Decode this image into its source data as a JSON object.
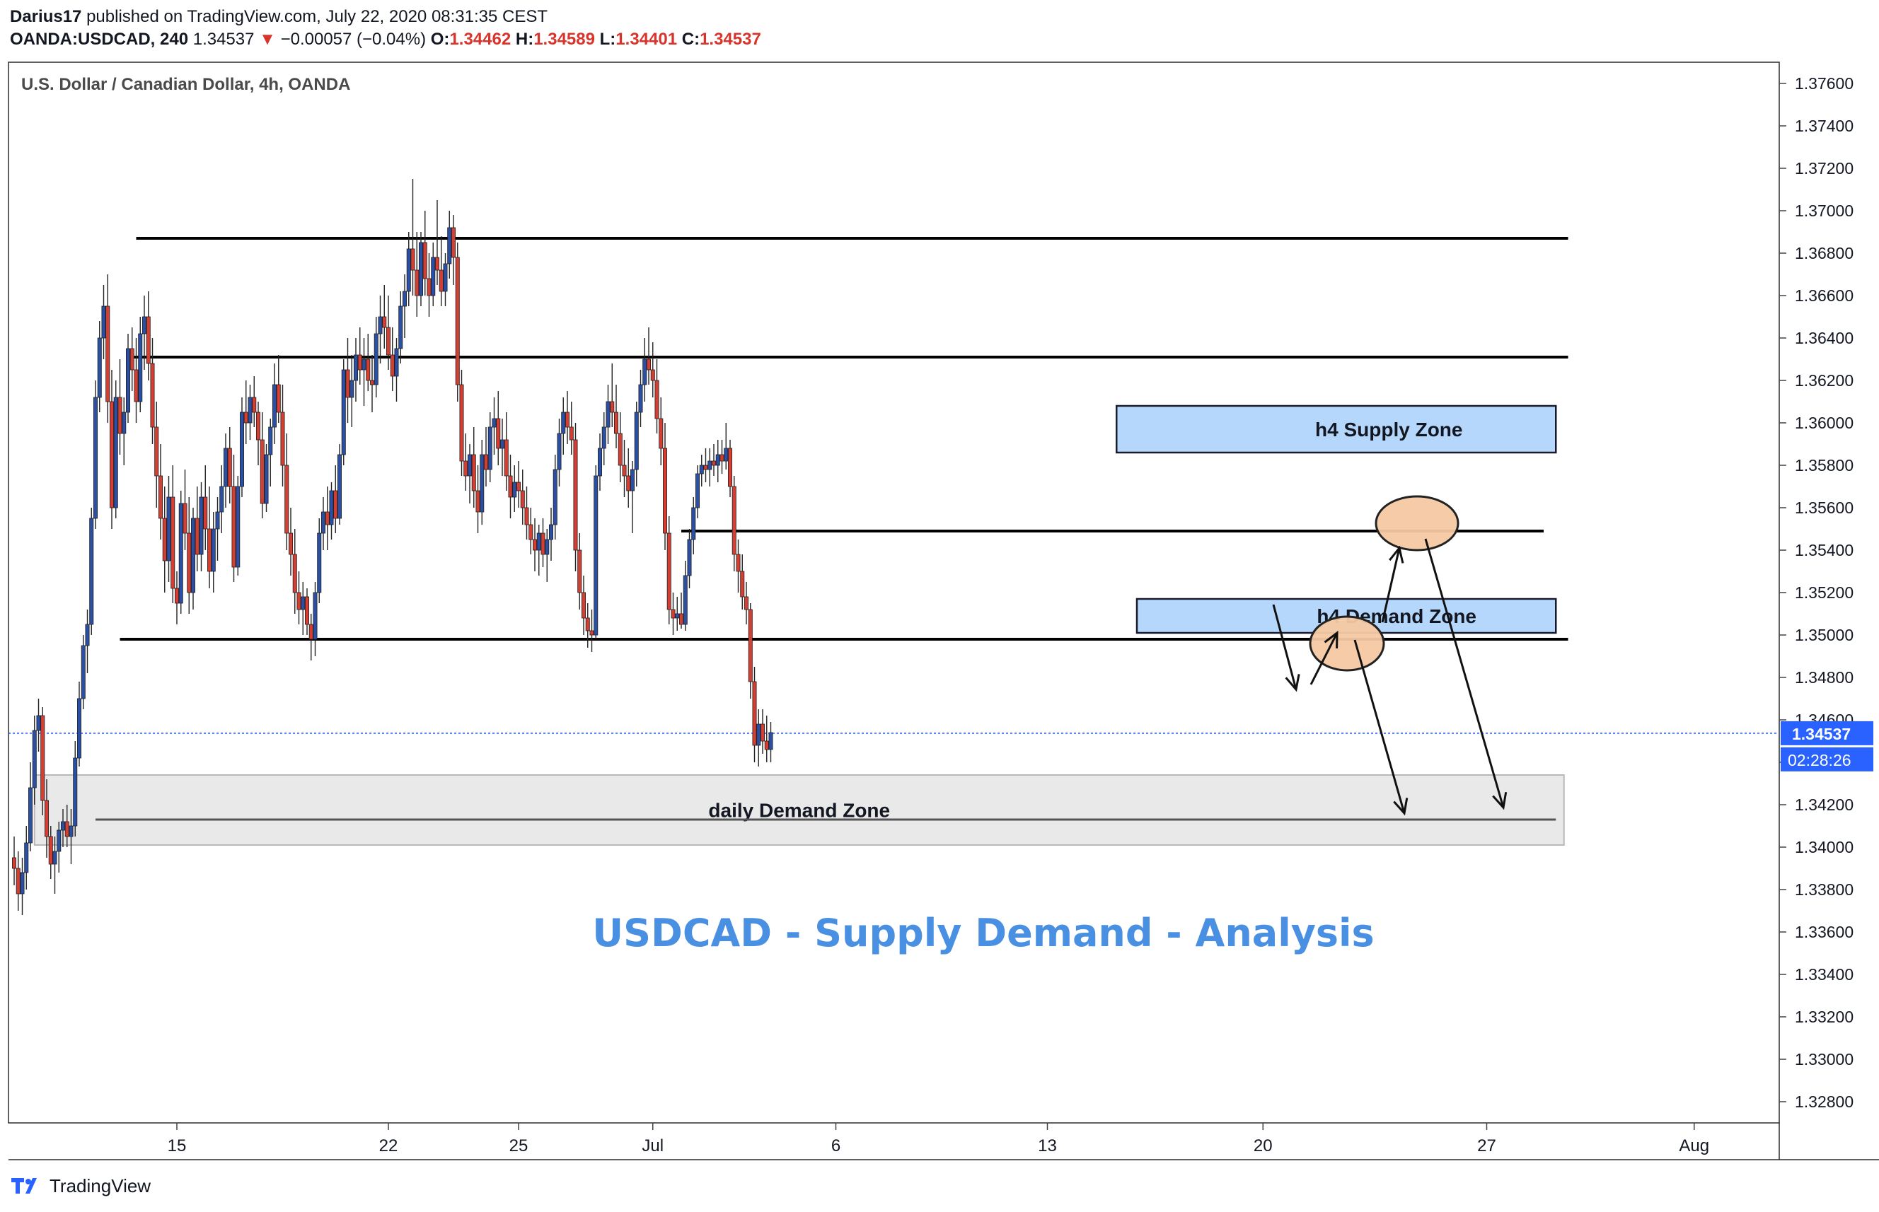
{
  "header": {
    "author": "Darius17",
    "published_text": "published on TradingView.com, July 22, 2020 08:31:35 CEST",
    "symbol": "OANDA:USDCAD, 240",
    "last": "1.34537",
    "change_arrow": "▼",
    "change": "−0.00057 (−0.04%)",
    "o_label": "O:",
    "o_value": "1.34462",
    "h_label": "H:",
    "h_value": "1.34589",
    "l_label": "L:",
    "l_value": "1.34401",
    "c_label": "C:",
    "c_value": "1.34537"
  },
  "footer": {
    "brand": "TradingView",
    "logo_icon": "tradingview-logo-icon"
  },
  "chart_data": {
    "type": "candlestick",
    "title": "U.S. Dollar / Canadian Dollar, 4h, OANDA",
    "annotation_title": "USDCAD - Supply Demand - Analysis",
    "ylim": [
      1.327,
      1.377
    ],
    "y_ticks": [
      "1.37600",
      "1.37400",
      "1.37200",
      "1.37000",
      "1.36800",
      "1.36600",
      "1.36400",
      "1.36200",
      "1.36000",
      "1.35800",
      "1.35600",
      "1.35400",
      "1.35200",
      "1.35000",
      "1.34800",
      "1.34600",
      "1.34400",
      "1.34200",
      "1.34000",
      "1.33800",
      "1.33600",
      "1.33400",
      "1.33200",
      "1.33000",
      "1.32800"
    ],
    "x_ticks": [
      "15",
      "22",
      "25",
      "Jul",
      "6",
      "13",
      "20",
      "27",
      "Aug"
    ],
    "x_tick_index": [
      40,
      92,
      124,
      157,
      202,
      254,
      307,
      362,
      413
    ],
    "current_price": "1.34537",
    "countdown": "02:28:26",
    "colors": {
      "up": "#2b4fa3",
      "down": "#d33f33",
      "zone_blue": "#a8d0fb",
      "zone_gray": "#e8e8e8",
      "title_blue": "#4a90e2",
      "price_line": "#2962ff",
      "circle": "#f5c9a3"
    },
    "horizontal_levels": [
      {
        "price": 1.3687,
        "from": 30,
        "to": 382
      },
      {
        "price": 1.3631,
        "from": 28,
        "to": 382
      },
      {
        "price": 1.3549,
        "from": 164,
        "to": 376
      },
      {
        "price": 1.3498,
        "from": 26,
        "to": 382
      },
      {
        "price": 1.3413,
        "from": 20,
        "to": 379
      }
    ],
    "zones": [
      {
        "label": "h4 Supply Zone",
        "kind": "supply",
        "top": 1.3608,
        "bottom": 1.3586,
        "from": 271,
        "to": 379
      },
      {
        "label": "h4 Demand Zone",
        "kind": "demand",
        "top": 1.3517,
        "bottom": 1.3501,
        "from": 276,
        "to": 379
      },
      {
        "label": "daily Demand Zone",
        "kind": "daily",
        "top": 1.3434,
        "bottom": 1.3401,
        "from": 5,
        "to": 381
      }
    ],
    "candles_ohlc": [
      [
        1.3395,
        1.3405,
        1.3382,
        1.339
      ],
      [
        1.339,
        1.3398,
        1.337,
        1.3378
      ],
      [
        1.3378,
        1.3395,
        1.3368,
        1.3388
      ],
      [
        1.3388,
        1.341,
        1.338,
        1.3402
      ],
      [
        1.3402,
        1.344,
        1.3398,
        1.3428
      ],
      [
        1.3428,
        1.3462,
        1.342,
        1.3455
      ],
      [
        1.3455,
        1.347,
        1.3445,
        1.3462
      ],
      [
        1.3462,
        1.3466,
        1.3415,
        1.3422
      ],
      [
        1.3422,
        1.3432,
        1.3395,
        1.3405
      ],
      [
        1.3405,
        1.341,
        1.3385,
        1.3392
      ],
      [
        1.3392,
        1.3405,
        1.3378,
        1.3398
      ],
      [
        1.3398,
        1.3412,
        1.3388,
        1.3408
      ],
      [
        1.3408,
        1.3418,
        1.34,
        1.3412
      ],
      [
        1.3412,
        1.342,
        1.34,
        1.3405
      ],
      [
        1.3405,
        1.3418,
        1.3392,
        1.341
      ],
      [
        1.341,
        1.345,
        1.3405,
        1.3442
      ],
      [
        1.3442,
        1.3478,
        1.3438,
        1.347
      ],
      [
        1.347,
        1.35,
        1.3465,
        1.3495
      ],
      [
        1.3495,
        1.3512,
        1.3482,
        1.3505
      ],
      [
        1.3505,
        1.356,
        1.35,
        1.3555
      ],
      [
        1.3555,
        1.362,
        1.355,
        1.3612
      ],
      [
        1.3612,
        1.3648,
        1.3605,
        1.364
      ],
      [
        1.364,
        1.3665,
        1.363,
        1.3655
      ],
      [
        1.3655,
        1.367,
        1.36,
        1.361
      ],
      [
        1.361,
        1.3625,
        1.355,
        1.356
      ],
      [
        1.356,
        1.362,
        1.3555,
        1.3612
      ],
      [
        1.3612,
        1.363,
        1.3585,
        1.3595
      ],
      [
        1.3595,
        1.3612,
        1.358,
        1.3605
      ],
      [
        1.3605,
        1.3642,
        1.36,
        1.3635
      ],
      [
        1.3635,
        1.3645,
        1.3615,
        1.3625
      ],
      [
        1.3625,
        1.364,
        1.36,
        1.361
      ],
      [
        1.361,
        1.365,
        1.3605,
        1.3642
      ],
      [
        1.3642,
        1.366,
        1.3625,
        1.365
      ],
      [
        1.365,
        1.3662,
        1.362,
        1.3628
      ],
      [
        1.3628,
        1.364,
        1.359,
        1.3598
      ],
      [
        1.3598,
        1.361,
        1.356,
        1.3575
      ],
      [
        1.3575,
        1.359,
        1.3545,
        1.3555
      ],
      [
        1.3555,
        1.357,
        1.352,
        1.3535
      ],
      [
        1.3535,
        1.3575,
        1.3525,
        1.3565
      ],
      [
        1.3565,
        1.358,
        1.3515,
        1.3522
      ],
      [
        1.3522,
        1.353,
        1.3505,
        1.3515
      ],
      [
        1.3515,
        1.3568,
        1.351,
        1.3562
      ],
      [
        1.3562,
        1.3578,
        1.354,
        1.3548
      ],
      [
        1.3548,
        1.3565,
        1.351,
        1.352
      ],
      [
        1.352,
        1.356,
        1.3512,
        1.3555
      ],
      [
        1.3555,
        1.357,
        1.353,
        1.3538
      ],
      [
        1.3538,
        1.3572,
        1.353,
        1.3565
      ],
      [
        1.3565,
        1.358,
        1.354,
        1.355
      ],
      [
        1.355,
        1.357,
        1.3522,
        1.353
      ],
      [
        1.353,
        1.3558,
        1.352,
        1.355
      ],
      [
        1.355,
        1.3565,
        1.3535,
        1.3558
      ],
      [
        1.3558,
        1.358,
        1.3548,
        1.357
      ],
      [
        1.357,
        1.3595,
        1.356,
        1.3588
      ],
      [
        1.3588,
        1.3598,
        1.3562,
        1.357
      ],
      [
        1.357,
        1.3585,
        1.3525,
        1.3532
      ],
      [
        1.3532,
        1.3575,
        1.3528,
        1.357
      ],
      [
        1.357,
        1.3612,
        1.3565,
        1.3605
      ],
      [
        1.3605,
        1.362,
        1.359,
        1.36
      ],
      [
        1.36,
        1.3618,
        1.3592,
        1.3612
      ],
      [
        1.3612,
        1.3622,
        1.3598,
        1.3605
      ],
      [
        1.3605,
        1.361,
        1.358,
        1.3592
      ],
      [
        1.3592,
        1.3605,
        1.3555,
        1.3562
      ],
      [
        1.3562,
        1.359,
        1.3558,
        1.3585
      ],
      [
        1.3585,
        1.3602,
        1.357,
        1.3598
      ],
      [
        1.3598,
        1.3628,
        1.359,
        1.3618
      ],
      [
        1.3618,
        1.3632,
        1.36,
        1.3605
      ],
      [
        1.3605,
        1.3618,
        1.357,
        1.358
      ],
      [
        1.358,
        1.3595,
        1.354,
        1.3548
      ],
      [
        1.3548,
        1.356,
        1.3528,
        1.3538
      ],
      [
        1.3538,
        1.355,
        1.351,
        1.352
      ],
      [
        1.352,
        1.353,
        1.3505,
        1.3512
      ],
      [
        1.3512,
        1.3525,
        1.35,
        1.3518
      ],
      [
        1.3518,
        1.3522,
        1.35,
        1.3505
      ],
      [
        1.3505,
        1.351,
        1.3488,
        1.3498
      ],
      [
        1.3498,
        1.3525,
        1.349,
        1.352
      ],
      [
        1.352,
        1.3555,
        1.3515,
        1.3548
      ],
      [
        1.3548,
        1.3565,
        1.354,
        1.3558
      ],
      [
        1.3558,
        1.357,
        1.354,
        1.3552
      ],
      [
        1.3552,
        1.3572,
        1.3545,
        1.3568
      ],
      [
        1.3568,
        1.358,
        1.3548,
        1.3555
      ],
      [
        1.3555,
        1.359,
        1.3552,
        1.3585
      ],
      [
        1.3585,
        1.363,
        1.358,
        1.3625
      ],
      [
        1.3625,
        1.364,
        1.36,
        1.3612
      ],
      [
        1.3612,
        1.3632,
        1.3598,
        1.362
      ],
      [
        1.362,
        1.364,
        1.361,
        1.3632
      ],
      [
        1.3632,
        1.3645,
        1.3618,
        1.3625
      ],
      [
        1.3625,
        1.364,
        1.3608,
        1.363
      ],
      [
        1.363,
        1.3642,
        1.3615,
        1.362
      ],
      [
        1.362,
        1.3632,
        1.3605,
        1.3618
      ],
      [
        1.3618,
        1.365,
        1.3612,
        1.3642
      ],
      [
        1.3642,
        1.366,
        1.3628,
        1.365
      ],
      [
        1.365,
        1.3665,
        1.3635,
        1.3645
      ],
      [
        1.3645,
        1.366,
        1.3625,
        1.3632
      ],
      [
        1.3632,
        1.3645,
        1.3615,
        1.3622
      ],
      [
        1.3622,
        1.364,
        1.361,
        1.3635
      ],
      [
        1.3635,
        1.3662,
        1.3628,
        1.3655
      ],
      [
        1.3655,
        1.367,
        1.364,
        1.3662
      ],
      [
        1.3662,
        1.369,
        1.3655,
        1.3682
      ],
      [
        1.3682,
        1.3715,
        1.366,
        1.3672
      ],
      [
        1.3672,
        1.369,
        1.365,
        1.366
      ],
      [
        1.366,
        1.369,
        1.3655,
        1.3685
      ],
      [
        1.3685,
        1.37,
        1.366,
        1.3668
      ],
      [
        1.3668,
        1.368,
        1.365,
        1.366
      ],
      [
        1.366,
        1.3685,
        1.3655,
        1.3678
      ],
      [
        1.3678,
        1.3705,
        1.3665,
        1.3672
      ],
      [
        1.3672,
        1.3688,
        1.3655,
        1.3662
      ],
      [
        1.3662,
        1.368,
        1.3655,
        1.3675
      ],
      [
        1.3675,
        1.37,
        1.3668,
        1.3692
      ],
      [
        1.3692,
        1.3698,
        1.3665,
        1.3678
      ],
      [
        1.3678,
        1.3685,
        1.361,
        1.3618
      ],
      [
        1.3618,
        1.3625,
        1.3575,
        1.3582
      ],
      [
        1.3582,
        1.3595,
        1.3568,
        1.3575
      ],
      [
        1.3575,
        1.359,
        1.3562,
        1.3585
      ],
      [
        1.3585,
        1.3598,
        1.356,
        1.3568
      ],
      [
        1.3568,
        1.358,
        1.3548,
        1.3558
      ],
      [
        1.3558,
        1.3592,
        1.3552,
        1.3585
      ],
      [
        1.3585,
        1.3598,
        1.357,
        1.3578
      ],
      [
        1.3578,
        1.3605,
        1.3572,
        1.3598
      ],
      [
        1.3598,
        1.3612,
        1.3585,
        1.3602
      ],
      [
        1.3602,
        1.3615,
        1.358,
        1.3588
      ],
      [
        1.3588,
        1.3602,
        1.3575,
        1.3592
      ],
      [
        1.3592,
        1.3605,
        1.3568,
        1.3575
      ],
      [
        1.3575,
        1.3585,
        1.3555,
        1.3565
      ],
      [
        1.3565,
        1.358,
        1.3558,
        1.3572
      ],
      [
        1.3572,
        1.3582,
        1.356,
        1.3568
      ],
      [
        1.3568,
        1.3578,
        1.3552,
        1.356
      ],
      [
        1.356,
        1.357,
        1.3545,
        1.3552
      ],
      [
        1.3552,
        1.356,
        1.3538,
        1.3545
      ],
      [
        1.3545,
        1.3555,
        1.353,
        1.354
      ],
      [
        1.354,
        1.3552,
        1.3528,
        1.3548
      ],
      [
        1.3548,
        1.3555,
        1.3532,
        1.3538
      ],
      [
        1.3538,
        1.355,
        1.3525,
        1.3545
      ],
      [
        1.3545,
        1.356,
        1.3535,
        1.3552
      ],
      [
        1.3552,
        1.3585,
        1.3545,
        1.3578
      ],
      [
        1.3578,
        1.3602,
        1.357,
        1.3595
      ],
      [
        1.3595,
        1.3612,
        1.3585,
        1.3605
      ],
      [
        1.3605,
        1.3615,
        1.359,
        1.3598
      ],
      [
        1.3598,
        1.361,
        1.3585,
        1.3592
      ],
      [
        1.3592,
        1.36,
        1.353,
        1.354
      ],
      [
        1.354,
        1.3548,
        1.3512,
        1.352
      ],
      [
        1.352,
        1.3528,
        1.35,
        1.3508
      ],
      [
        1.3508,
        1.3515,
        1.3494,
        1.3502
      ],
      [
        1.3502,
        1.3512,
        1.3492,
        1.35
      ],
      [
        1.35,
        1.358,
        1.3498,
        1.3575
      ],
      [
        1.3575,
        1.3595,
        1.3568,
        1.3588
      ],
      [
        1.3588,
        1.3605,
        1.358,
        1.3598
      ],
      [
        1.3598,
        1.3618,
        1.359,
        1.361
      ],
      [
        1.361,
        1.3628,
        1.3598,
        1.3605
      ],
      [
        1.3605,
        1.3618,
        1.3588,
        1.3595
      ],
      [
        1.3595,
        1.3605,
        1.3572,
        1.358
      ],
      [
        1.358,
        1.3592,
        1.3565,
        1.3575
      ],
      [
        1.3575,
        1.3588,
        1.356,
        1.3568
      ],
      [
        1.3568,
        1.3582,
        1.3548,
        1.3578
      ],
      [
        1.3578,
        1.361,
        1.357,
        1.3605
      ],
      [
        1.3605,
        1.3625,
        1.3598,
        1.3618
      ],
      [
        1.3618,
        1.364,
        1.361,
        1.363
      ],
      [
        1.363,
        1.3645,
        1.3618,
        1.3625
      ],
      [
        1.3625,
        1.3638,
        1.3612,
        1.362
      ],
      [
        1.362,
        1.363,
        1.3595,
        1.3602
      ],
      [
        1.3602,
        1.3612,
        1.358,
        1.3588
      ],
      [
        1.3588,
        1.36,
        1.354,
        1.3548
      ],
      [
        1.3548,
        1.3556,
        1.3505,
        1.3512
      ],
      [
        1.3512,
        1.352,
        1.35,
        1.3508
      ],
      [
        1.3508,
        1.3518,
        1.3502,
        1.351
      ],
      [
        1.351,
        1.352,
        1.3503,
        1.3505
      ],
      [
        1.3505,
        1.3535,
        1.3502,
        1.3528
      ],
      [
        1.3528,
        1.355,
        1.3522,
        1.3545
      ],
      [
        1.3545,
        1.3565,
        1.3538,
        1.356
      ],
      [
        1.356,
        1.358,
        1.3555,
        1.3576
      ],
      [
        1.3576,
        1.3585,
        1.357,
        1.358
      ],
      [
        1.358,
        1.3588,
        1.3572,
        1.3578
      ],
      [
        1.3578,
        1.3588,
        1.357,
        1.3582
      ],
      [
        1.3582,
        1.359,
        1.3575,
        1.358
      ],
      [
        1.358,
        1.3592,
        1.3572,
        1.3585
      ],
      [
        1.3585,
        1.3592,
        1.3576,
        1.3582
      ],
      [
        1.3582,
        1.36,
        1.3578,
        1.3588
      ],
      [
        1.3588,
        1.3592,
        1.3565,
        1.357
      ],
      [
        1.357,
        1.3575,
        1.353,
        1.3538
      ],
      [
        1.3538,
        1.3545,
        1.352,
        1.353
      ],
      [
        1.353,
        1.3538,
        1.3512,
        1.3518
      ],
      [
        1.3518,
        1.3525,
        1.3505,
        1.3512
      ],
      [
        1.3512,
        1.3515,
        1.347,
        1.3478
      ],
      [
        1.3478,
        1.3485,
        1.344,
        1.3448
      ],
      [
        1.3448,
        1.3465,
        1.3438,
        1.3458
      ],
      [
        1.3458,
        1.3465,
        1.3444,
        1.345
      ],
      [
        1.345,
        1.3462,
        1.344,
        1.3446
      ],
      [
        1.3446,
        1.3459,
        1.344,
        1.3454
      ]
    ]
  }
}
